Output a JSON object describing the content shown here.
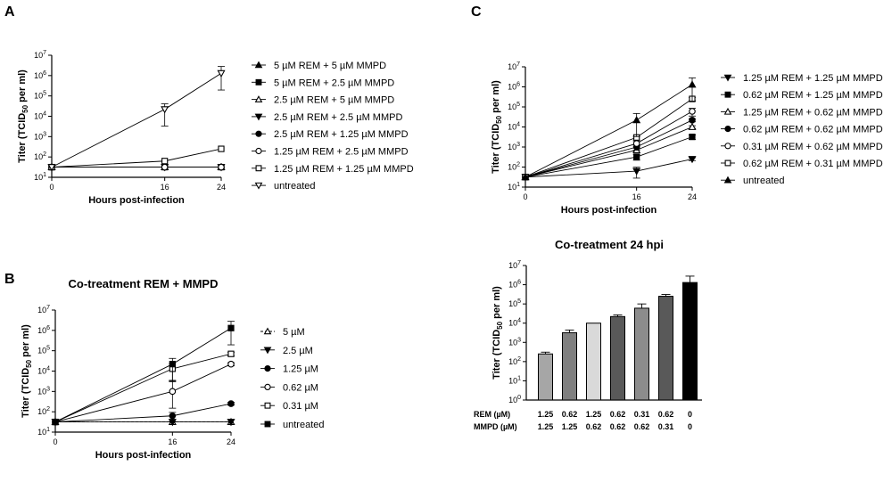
{
  "chart_data": [
    {
      "id": "A",
      "type": "line",
      "panel_label": "A",
      "title": "",
      "xlabel": "Hours post-infection",
      "ylabel": "Titer (TCID50 per ml)",
      "x_ticks": [
        0,
        16,
        24
      ],
      "y_scale": "log",
      "ylim_exp": [
        1,
        7
      ],
      "legend_position": "right",
      "series": [
        {
          "name": "5 µM REM + 5 µM MMPD",
          "marker": "tri-up-filled",
          "x": [
            0,
            16,
            24
          ],
          "y": [
            31.6,
            31.6,
            31.6
          ]
        },
        {
          "name": "5 µM REM + 2.5 µM MMPD",
          "marker": "square-filled",
          "x": [
            0,
            16,
            24
          ],
          "y": [
            31.6,
            31.6,
            31.6
          ]
        },
        {
          "name": "2.5 µM REM + 5 µM MMPD",
          "marker": "tri-up-open",
          "x": [
            0,
            16,
            24
          ],
          "y": [
            31.6,
            31.6,
            31.6
          ]
        },
        {
          "name": "2.5 µM REM + 2.5 µM MMPD",
          "marker": "tri-down-filled",
          "x": [
            0,
            16,
            24
          ],
          "y": [
            31.6,
            31.6,
            31.6
          ]
        },
        {
          "name": "2.5 µM REM + 1.25 µM MMPD",
          "marker": "circle-filled",
          "x": [
            0,
            16,
            24
          ],
          "y": [
            31.6,
            31.6,
            31.6
          ]
        },
        {
          "name": "1.25 µM REM + 2.5 µM MMPD",
          "marker": "circle-open",
          "x": [
            0,
            16,
            24
          ],
          "y": [
            31.6,
            31.6,
            31.6
          ]
        },
        {
          "name": "1.25 µM REM + 1.25 µM MMPD",
          "marker": "square-open",
          "x": [
            0,
            16,
            24
          ],
          "y": [
            31.6,
            63,
            250
          ]
        },
        {
          "name": "untreated",
          "marker": "tri-down-open",
          "x": [
            0,
            16,
            24
          ],
          "y": [
            31.6,
            22000,
            1300000
          ],
          "err": [
            0,
            19000,
            1500000
          ]
        }
      ]
    },
    {
      "id": "B",
      "type": "line",
      "panel_label": "B",
      "title": "Co-treatment REM + MMPD",
      "xlabel": "Hours post-infection",
      "ylabel": "Titer (TCID50 per ml)",
      "x_ticks": [
        0,
        16,
        24
      ],
      "y_scale": "log",
      "ylim_exp": [
        1,
        7
      ],
      "legend_position": "right",
      "series": [
        {
          "name": "5 µM",
          "marker": "tri-up-open",
          "x": [
            0,
            16,
            24
          ],
          "y": [
            31.6,
            31.6,
            31.6
          ],
          "dashed": true
        },
        {
          "name": "2.5 µM",
          "marker": "tri-down-filled",
          "x": [
            0,
            16,
            24
          ],
          "y": [
            31.6,
            31.6,
            31.6
          ]
        },
        {
          "name": "1.25 µM",
          "marker": "circle-filled",
          "x": [
            0,
            16,
            24
          ],
          "y": [
            31.6,
            63,
            250
          ],
          "err": [
            0,
            30,
            40
          ]
        },
        {
          "name": "0.62 µM",
          "marker": "circle-open",
          "x": [
            0,
            16,
            24
          ],
          "y": [
            31.6,
            1000,
            22000
          ],
          "err": [
            0,
            2500,
            4000
          ]
        },
        {
          "name": "0.31 µM",
          "marker": "square-open",
          "x": [
            0,
            16,
            24
          ],
          "y": [
            31.6,
            13000,
            70000
          ],
          "err": [
            0,
            10000,
            15000
          ]
        },
        {
          "name": "untreated",
          "marker": "square-filled",
          "x": [
            0,
            16,
            24
          ],
          "y": [
            31.6,
            22000,
            1300000
          ],
          "err": [
            0,
            20000,
            1500000
          ]
        }
      ]
    },
    {
      "id": "C",
      "type": "line",
      "panel_label": "C",
      "title": "",
      "xlabel": "Hours post-infection",
      "ylabel": "Titer (TCID50 per ml)",
      "x_ticks": [
        0,
        16,
        24
      ],
      "y_scale": "log",
      "ylim_exp": [
        1,
        7
      ],
      "legend_position": "right",
      "series": [
        {
          "name": "1.25 µM REM + 1.25 µM MMPD",
          "marker": "tri-down-filled",
          "x": [
            0,
            16,
            24
          ],
          "y": [
            31.6,
            63,
            250
          ],
          "err": [
            0,
            35,
            40
          ]
        },
        {
          "name": "0.62 µM REM + 1.25 µM MMPD",
          "marker": "square-filled",
          "x": [
            0,
            16,
            24
          ],
          "y": [
            31.6,
            320,
            3200
          ],
          "err": [
            0,
            100,
            800
          ]
        },
        {
          "name": "1.25 µM REM + 0.62 µM MMPD",
          "marker": "tri-up-open",
          "x": [
            0,
            16,
            24
          ],
          "y": [
            31.6,
            700,
            10000
          ],
          "err": [
            0,
            200,
            1500
          ]
        },
        {
          "name": "0.62 µM REM + 0.62 µM MMPD",
          "marker": "circle-filled",
          "x": [
            0,
            16,
            24
          ],
          "y": [
            31.6,
            1000,
            22000
          ],
          "err": [
            0,
            300,
            4000
          ]
        },
        {
          "name": "0.31 µM REM + 0.62 µM MMPD",
          "marker": "circle-open",
          "x": [
            0,
            16,
            24
          ],
          "y": [
            31.6,
            1500,
            60000
          ],
          "err": [
            0,
            400,
            25000
          ]
        },
        {
          "name": "0.62 µM REM + 0.31 µM MMPD",
          "marker": "square-open",
          "x": [
            0,
            16,
            24
          ],
          "y": [
            31.6,
            3000,
            250000
          ],
          "err": [
            0,
            800,
            50000
          ]
        },
        {
          "name": "untreated",
          "marker": "tri-up-filled",
          "x": [
            0,
            16,
            24
          ],
          "y": [
            31.6,
            22000,
            1300000
          ],
          "err": [
            0,
            25000,
            1500000
          ]
        }
      ]
    },
    {
      "id": "D",
      "type": "bar",
      "panel_label": "",
      "title": "Co-treatment 24 hpi",
      "ylabel": "Titer (TCID50 per ml)",
      "y_scale": "log",
      "ylim_exp": [
        0,
        7
      ],
      "categories_rem": [
        "1.25",
        "0.62",
        "1.25",
        "0.62",
        "0.31",
        "0.62",
        "0"
      ],
      "categories_mmpd": [
        "1.25",
        "1.25",
        "0.62",
        "0.62",
        "0.62",
        "0.31",
        "0"
      ],
      "row_labels": [
        "REM (µM)",
        "MMPD  (µM)"
      ],
      "values": [
        250,
        3200,
        10000,
        22000,
        60000,
        250000,
        1300000
      ],
      "errors": [
        60,
        1200,
        0,
        5000,
        40000,
        60000,
        1500000
      ],
      "colors": [
        "#a6a6a6",
        "#7f7f7f",
        "#d9d9d9",
        "#595959",
        "#8c8c8c",
        "#595959",
        "#000000"
      ]
    }
  ]
}
